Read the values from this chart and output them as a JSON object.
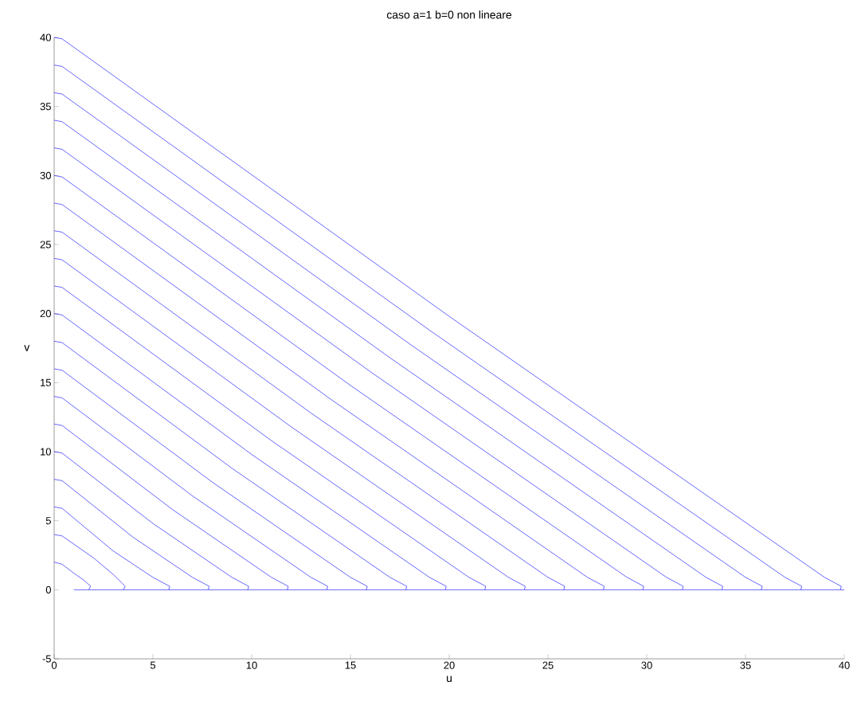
{
  "chart_data": {
    "type": "line",
    "title": "caso a=1   b=0  non lineare",
    "xlabel": "u",
    "ylabel": "v",
    "color": "#0000ff",
    "xlim": [
      0,
      40
    ],
    "ylim": [
      -5,
      40
    ],
    "xticks": [
      0,
      5,
      10,
      15,
      20,
      25,
      30,
      35,
      40
    ],
    "yticks": [
      -5,
      0,
      5,
      10,
      15,
      20,
      25,
      30,
      35,
      40
    ],
    "series": [
      {
        "x": [
          0,
          0.4,
          1.0,
          1.5,
          1.85,
          1.75
        ],
        "values": [
          2,
          1.85,
          1.2,
          0.7,
          0.25,
          0
        ]
      },
      {
        "x": [
          0,
          0.4,
          2,
          3,
          3.6,
          3.5
        ],
        "values": [
          4,
          3.9,
          2.3,
          1.1,
          0.25,
          0
        ]
      },
      {
        "x": [
          0,
          0.4,
          3,
          5,
          5.85,
          5.8
        ],
        "values": [
          6,
          5.9,
          2.8,
          0.9,
          0.25,
          0
        ]
      },
      {
        "x": [
          0,
          0.4,
          4,
          7,
          7.85,
          7.8
        ],
        "values": [
          8,
          7.9,
          3.8,
          0.9,
          0.25,
          0
        ]
      },
      {
        "x": [
          0,
          0.4,
          5,
          9,
          9.85,
          9.8
        ],
        "values": [
          10,
          9.9,
          4.8,
          0.9,
          0.25,
          0
        ]
      },
      {
        "x": [
          0,
          0.4,
          6,
          11,
          11.85,
          11.8
        ],
        "values": [
          12,
          11.9,
          5.8,
          0.9,
          0.25,
          0
        ]
      },
      {
        "x": [
          0,
          0.4,
          7,
          13,
          13.85,
          13.8
        ],
        "values": [
          14,
          13.9,
          6.8,
          0.9,
          0.25,
          0
        ]
      },
      {
        "x": [
          0,
          0.4,
          8,
          15,
          15.85,
          15.8
        ],
        "values": [
          16,
          15.9,
          7.8,
          0.9,
          0.25,
          0
        ]
      },
      {
        "x": [
          0,
          0.4,
          9,
          17,
          17.85,
          17.8
        ],
        "values": [
          18,
          17.9,
          8.8,
          0.9,
          0.25,
          0
        ]
      },
      {
        "x": [
          0,
          0.4,
          10,
          19,
          19.85,
          19.8
        ],
        "values": [
          20,
          19.9,
          9.8,
          0.9,
          0.25,
          0
        ]
      },
      {
        "x": [
          0,
          0.4,
          11,
          21,
          21.85,
          21.8
        ],
        "values": [
          22,
          21.9,
          10.8,
          0.9,
          0.25,
          0
        ]
      },
      {
        "x": [
          0,
          0.4,
          12,
          23,
          23.85,
          23.8
        ],
        "values": [
          24,
          23.9,
          11.8,
          0.9,
          0.25,
          0
        ]
      },
      {
        "x": [
          0,
          0.4,
          13,
          25,
          25.85,
          25.8
        ],
        "values": [
          26,
          25.9,
          12.8,
          0.9,
          0.25,
          0
        ]
      },
      {
        "x": [
          0,
          0.4,
          14,
          27,
          27.85,
          27.8
        ],
        "values": [
          28,
          27.9,
          13.8,
          0.9,
          0.25,
          0
        ]
      },
      {
        "x": [
          0,
          0.4,
          15,
          29,
          29.85,
          29.8
        ],
        "values": [
          30,
          29.9,
          14.8,
          0.9,
          0.25,
          0
        ]
      },
      {
        "x": [
          0,
          0.4,
          16,
          31,
          31.85,
          31.8
        ],
        "values": [
          32,
          31.9,
          15.8,
          0.9,
          0.25,
          0
        ]
      },
      {
        "x": [
          0,
          0.4,
          17,
          33,
          33.85,
          33.8
        ],
        "values": [
          34,
          33.9,
          16.8,
          0.9,
          0.25,
          0
        ]
      },
      {
        "x": [
          0,
          0.4,
          18,
          35,
          35.85,
          35.8
        ],
        "values": [
          36,
          35.9,
          17.8,
          0.9,
          0.25,
          0
        ]
      },
      {
        "x": [
          0,
          0.4,
          19,
          37,
          37.85,
          37.8
        ],
        "values": [
          38,
          37.9,
          18.8,
          0.9,
          0.25,
          0
        ]
      },
      {
        "x": [
          0,
          0.4,
          20,
          39,
          39.85,
          39.8
        ],
        "values": [
          40,
          39.9,
          19.8,
          0.9,
          0.25,
          0
        ]
      },
      {
        "x": [
          1,
          40
        ],
        "values": [
          0,
          0
        ]
      }
    ]
  }
}
